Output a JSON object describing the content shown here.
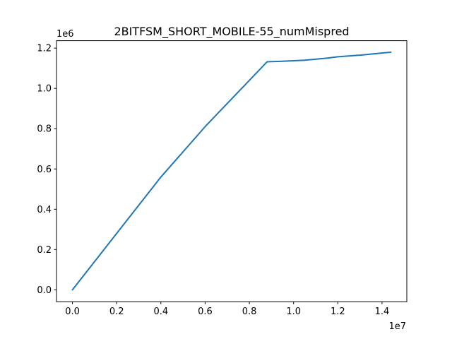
{
  "chart_data": {
    "type": "line",
    "title": "2BITFSM_SHORT_MOBILE-55_numMispred",
    "xlabel": "",
    "ylabel": "",
    "x_offset_label": "1e7",
    "y_offset_label": "1e6",
    "xlim": [
      -0.072,
      1.512
    ],
    "ylim": [
      -0.059,
      1.237
    ],
    "x_ticks": [
      {
        "value": 0.0,
        "label": "0.0"
      },
      {
        "value": 0.2,
        "label": "0.2"
      },
      {
        "value": 0.4,
        "label": "0.4"
      },
      {
        "value": 0.6,
        "label": "0.6"
      },
      {
        "value": 0.8,
        "label": "0.8"
      },
      {
        "value": 1.0,
        "label": "1.0"
      },
      {
        "value": 1.2,
        "label": "1.2"
      },
      {
        "value": 1.4,
        "label": "1.4"
      }
    ],
    "y_ticks": [
      {
        "value": 0.0,
        "label": "0.0"
      },
      {
        "value": 0.2,
        "label": "0.2"
      },
      {
        "value": 0.4,
        "label": "0.4"
      },
      {
        "value": 0.6,
        "label": "0.6"
      },
      {
        "value": 0.8,
        "label": "0.8"
      },
      {
        "value": 1.0,
        "label": "1.0"
      },
      {
        "value": 1.2,
        "label": "1.2"
      }
    ],
    "grid": false,
    "series": [
      {
        "color": "#1f77b4",
        "x": [
          0.0,
          0.2,
          0.4,
          0.6,
          0.8,
          0.88,
          0.95,
          1.05,
          1.15,
          1.2,
          1.3,
          1.44
        ],
        "y": [
          0.0,
          0.28,
          0.56,
          0.81,
          1.04,
          1.132,
          1.135,
          1.14,
          1.15,
          1.157,
          1.165,
          1.18
        ]
      }
    ]
  }
}
